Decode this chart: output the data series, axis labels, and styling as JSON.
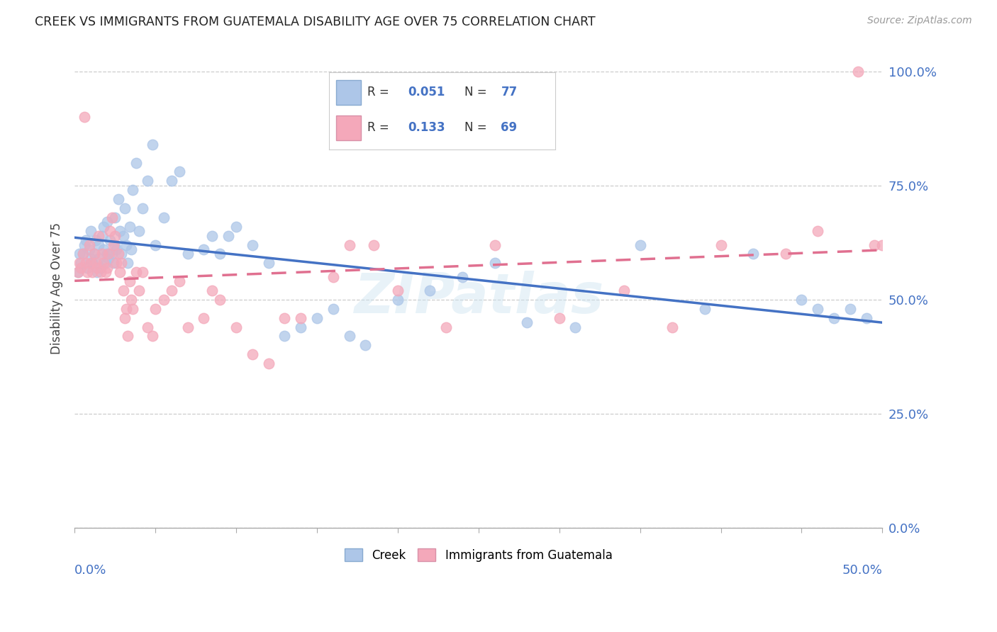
{
  "title": "CREEK VS IMMIGRANTS FROM GUATEMALA DISABILITY AGE OVER 75 CORRELATION CHART",
  "source": "Source: ZipAtlas.com",
  "ylabel": "Disability Age Over 75",
  "right_ytick_vals": [
    0.0,
    0.25,
    0.5,
    0.75,
    1.0
  ],
  "right_ytick_labels": [
    "0.0%",
    "25.0%",
    "50.0%",
    "75.0%",
    "100.0%"
  ],
  "creek_color": "#adc6e8",
  "guate_color": "#f4a8ba",
  "creek_line_color": "#4472c4",
  "guate_line_color": "#e07090",
  "xlim": [
    0.0,
    0.5
  ],
  "ylim": [
    0.0,
    1.05
  ],
  "watermark": "ZIPatlas",
  "creek_x": [
    0.002,
    0.003,
    0.004,
    0.005,
    0.006,
    0.007,
    0.008,
    0.009,
    0.01,
    0.01,
    0.011,
    0.012,
    0.013,
    0.014,
    0.015,
    0.015,
    0.016,
    0.017,
    0.018,
    0.018,
    0.019,
    0.02,
    0.02,
    0.021,
    0.022,
    0.023,
    0.024,
    0.025,
    0.025,
    0.026,
    0.027,
    0.028,
    0.029,
    0.03,
    0.031,
    0.032,
    0.033,
    0.034,
    0.035,
    0.036,
    0.038,
    0.04,
    0.042,
    0.045,
    0.048,
    0.05,
    0.055,
    0.06,
    0.065,
    0.07,
    0.08,
    0.085,
    0.09,
    0.095,
    0.1,
    0.11,
    0.12,
    0.13,
    0.14,
    0.15,
    0.16,
    0.17,
    0.18,
    0.2,
    0.22,
    0.24,
    0.26,
    0.28,
    0.31,
    0.35,
    0.39,
    0.42,
    0.45,
    0.46,
    0.47,
    0.48,
    0.49
  ],
  "creek_y": [
    0.56,
    0.6,
    0.58,
    0.6,
    0.62,
    0.63,
    0.57,
    0.61,
    0.59,
    0.65,
    0.58,
    0.6,
    0.63,
    0.56,
    0.62,
    0.59,
    0.57,
    0.64,
    0.61,
    0.66,
    0.58,
    0.6,
    0.67,
    0.59,
    0.63,
    0.6,
    0.58,
    0.62,
    0.68,
    0.61,
    0.72,
    0.65,
    0.6,
    0.64,
    0.7,
    0.62,
    0.58,
    0.66,
    0.61,
    0.74,
    0.8,
    0.65,
    0.7,
    0.76,
    0.84,
    0.62,
    0.68,
    0.76,
    0.78,
    0.6,
    0.61,
    0.64,
    0.6,
    0.64,
    0.66,
    0.62,
    0.58,
    0.42,
    0.44,
    0.46,
    0.48,
    0.42,
    0.4,
    0.5,
    0.52,
    0.55,
    0.58,
    0.45,
    0.44,
    0.62,
    0.48,
    0.6,
    0.5,
    0.48,
    0.46,
    0.48,
    0.46
  ],
  "guate_x": [
    0.002,
    0.003,
    0.004,
    0.005,
    0.006,
    0.007,
    0.008,
    0.009,
    0.01,
    0.011,
    0.012,
    0.013,
    0.014,
    0.015,
    0.016,
    0.017,
    0.018,
    0.019,
    0.02,
    0.021,
    0.022,
    0.023,
    0.024,
    0.025,
    0.026,
    0.027,
    0.028,
    0.029,
    0.03,
    0.031,
    0.032,
    0.033,
    0.034,
    0.035,
    0.036,
    0.038,
    0.04,
    0.042,
    0.045,
    0.048,
    0.05,
    0.055,
    0.06,
    0.065,
    0.07,
    0.08,
    0.085,
    0.09,
    0.1,
    0.11,
    0.12,
    0.13,
    0.14,
    0.16,
    0.17,
    0.185,
    0.2,
    0.23,
    0.26,
    0.3,
    0.34,
    0.37,
    0.4,
    0.44,
    0.46,
    0.485,
    0.495,
    0.5,
    0.505
  ],
  "guate_y": [
    0.56,
    0.58,
    0.57,
    0.6,
    0.9,
    0.58,
    0.56,
    0.62,
    0.58,
    0.56,
    0.6,
    0.58,
    0.57,
    0.64,
    0.56,
    0.6,
    0.58,
    0.56,
    0.57,
    0.6,
    0.65,
    0.68,
    0.62,
    0.64,
    0.58,
    0.6,
    0.56,
    0.58,
    0.52,
    0.46,
    0.48,
    0.42,
    0.54,
    0.5,
    0.48,
    0.56,
    0.52,
    0.56,
    0.44,
    0.42,
    0.48,
    0.5,
    0.52,
    0.54,
    0.44,
    0.46,
    0.52,
    0.5,
    0.44,
    0.38,
    0.36,
    0.46,
    0.46,
    0.55,
    0.62,
    0.62,
    0.52,
    0.44,
    0.62,
    0.46,
    0.52,
    0.44,
    0.62,
    0.6,
    0.65,
    1.0,
    0.62,
    0.62,
    0.62
  ]
}
